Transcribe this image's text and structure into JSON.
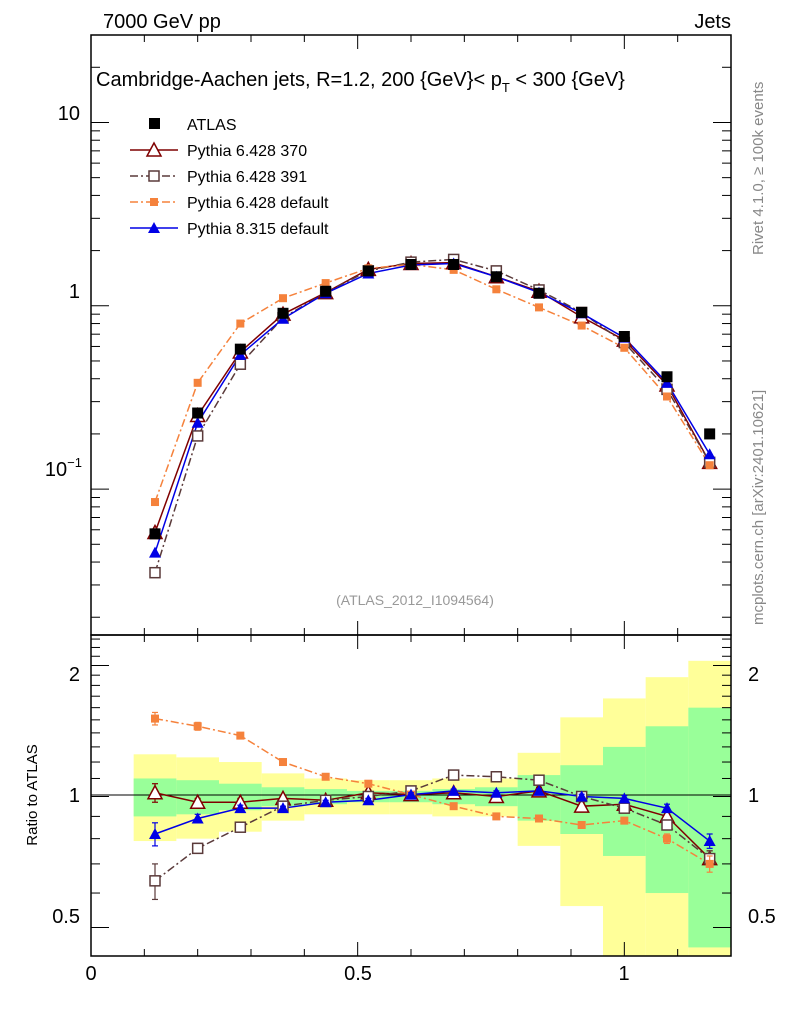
{
  "header": {
    "energy": "7000 GeV pp",
    "process": "Jets"
  },
  "side_labels": {
    "rivet": "Rivet 4.1.0, ≥ 100k events",
    "mcplots": "mcplots.cern.ch [arXiv:2401.10621]"
  },
  "chart_data": {
    "type": "line",
    "title": "Cambridge-Aachen jets, R=1.2,  200 {GeV}< p_T < 300 {GeV}",
    "analysis_id": "(ATLAS_2012_I1094564)",
    "x": [
      0.12,
      0.2,
      0.28,
      0.36,
      0.44,
      0.52,
      0.6,
      0.68,
      0.76,
      0.84,
      0.92,
      1.0,
      1.08,
      1.16
    ],
    "xlim": [
      0,
      1.2
    ],
    "x_ticks": [
      {
        "value": 0,
        "label": "0"
      },
      {
        "value": 0.5,
        "label": "0.5"
      },
      {
        "value": 1,
        "label": "1"
      }
    ],
    "main_panel": {
      "scale": "log",
      "ylim": [
        0.016,
        30
      ],
      "y_ticks": [
        {
          "value": 10,
          "label": "10"
        },
        {
          "value": 1,
          "label": "1"
        },
        {
          "value": 0.1,
          "label": "10^-1"
        }
      ],
      "data": {
        "name": "ATLAS",
        "values": [
          0.057,
          0.26,
          0.58,
          0.91,
          1.2,
          1.55,
          1.68,
          1.68,
          1.44,
          1.17,
          0.92,
          0.68,
          0.41,
          0.2
        ],
        "errors": [
          0.003,
          0.01,
          0.02,
          0.03,
          0.03,
          0.04,
          0.04,
          0.04,
          0.04,
          0.03,
          0.03,
          0.02,
          0.02,
          0.01
        ]
      },
      "series": [
        {
          "name": "Pythia 6.428 370",
          "color": "#7f0000",
          "marker": "open-triangle",
          "dash": "solid",
          "values": [
            0.058,
            0.252,
            0.56,
            0.9,
            1.18,
            1.58,
            1.7,
            1.72,
            1.44,
            1.2,
            0.87,
            0.65,
            0.37,
            0.14
          ],
          "errors": [
            0.003,
            0.005,
            0.008,
            0.01,
            0.01,
            0.012,
            0.012,
            0.012,
            0.012,
            0.01,
            0.01,
            0.008,
            0.006,
            0.004
          ]
        },
        {
          "name": "Pythia 6.428 391",
          "color": "#5a3a3a",
          "marker": "open-square",
          "dash": "dashdot",
          "values": [
            0.035,
            0.195,
            0.48,
            0.86,
            1.18,
            1.55,
            1.73,
            1.79,
            1.55,
            1.22,
            0.92,
            0.63,
            0.35,
            0.14
          ],
          "errors": [
            0.003,
            0.005,
            0.008,
            0.01,
            0.01,
            0.012,
            0.012,
            0.012,
            0.012,
            0.01,
            0.01,
            0.008,
            0.006,
            0.004
          ]
        },
        {
          "name": "Pythia 6.428 default",
          "color": "#f5823c",
          "marker": "filled-square",
          "dash": "dashdot",
          "values": [
            0.085,
            0.38,
            0.8,
            1.1,
            1.33,
            1.6,
            1.68,
            1.57,
            1.23,
            0.98,
            0.78,
            0.59,
            0.32,
            0.135
          ],
          "errors": [
            0.003,
            0.005,
            0.008,
            0.01,
            0.01,
            0.012,
            0.012,
            0.012,
            0.012,
            0.01,
            0.01,
            0.008,
            0.006,
            0.004
          ]
        },
        {
          "name": "Pythia 8.315 default",
          "color": "#0000e6",
          "marker": "filled-triangle",
          "dash": "solid",
          "values": [
            0.045,
            0.23,
            0.54,
            0.85,
            1.17,
            1.5,
            1.67,
            1.7,
            1.44,
            1.18,
            0.91,
            0.67,
            0.38,
            0.155
          ],
          "errors": [
            0.003,
            0.005,
            0.008,
            0.01,
            0.01,
            0.012,
            0.012,
            0.012,
            0.012,
            0.01,
            0.01,
            0.008,
            0.006,
            0.004
          ]
        }
      ]
    },
    "ratio_panel": {
      "ylabel": "Ratio to ATLAS",
      "scale": "log",
      "ylim": [
        0.43,
        2.35
      ],
      "y_ticks": [
        {
          "value": 2,
          "label": "2"
        },
        {
          "value": 1,
          "label": "1"
        },
        {
          "value": 0.5,
          "label": "0.5"
        }
      ],
      "band_edges": [
        0.08,
        0.16,
        0.24,
        0.32,
        0.4,
        0.48,
        0.56,
        0.64,
        0.72,
        0.8,
        0.88,
        0.96,
        1.04,
        1.12,
        1.2
      ],
      "green_band": [
        [
          0.9,
          1.1
        ],
        [
          0.91,
          1.09
        ],
        [
          0.93,
          1.07
        ],
        [
          0.95,
          1.05
        ],
        [
          0.96,
          1.04
        ],
        [
          0.97,
          1.03
        ],
        [
          0.97,
          1.03
        ],
        [
          0.96,
          1.04
        ],
        [
          0.95,
          1.05
        ],
        [
          0.88,
          1.12
        ],
        [
          0.82,
          1.18
        ],
        [
          0.73,
          1.3
        ],
        [
          0.6,
          1.45
        ],
        [
          0.45,
          1.6
        ]
      ],
      "yellow_band": [
        [
          0.79,
          1.25
        ],
        [
          0.8,
          1.23
        ],
        [
          0.83,
          1.2
        ],
        [
          0.88,
          1.13
        ],
        [
          0.91,
          1.1
        ],
        [
          0.91,
          1.09
        ],
        [
          0.91,
          1.09
        ],
        [
          0.9,
          1.1
        ],
        [
          0.9,
          1.1
        ],
        [
          0.77,
          1.26
        ],
        [
          0.56,
          1.52
        ],
        [
          0.4,
          1.68
        ],
        [
          0.34,
          1.88
        ],
        [
          0.32,
          2.05
        ]
      ],
      "series": [
        {
          "name": "Pythia 6.428 370",
          "values": [
            1.02,
            0.97,
            0.97,
            0.99,
            0.98,
            1.02,
            1.01,
            1.02,
            1.0,
            1.03,
            0.95,
            0.96,
            0.9,
            0.72
          ],
          "errors": [
            0.05,
            0.02,
            0.02,
            0.015,
            0.015,
            0.015,
            0.015,
            0.015,
            0.015,
            0.02,
            0.02,
            0.02,
            0.025,
            0.03
          ]
        },
        {
          "name": "Pythia 6.428 391",
          "values": [
            0.64,
            0.76,
            0.85,
            0.95,
            0.98,
            1.0,
            1.03,
            1.12,
            1.11,
            1.09,
            1.0,
            0.94,
            0.86,
            0.72
          ],
          "errors": [
            0.06,
            0.02,
            0.015,
            0.01,
            0.01,
            0.01,
            0.01,
            0.01,
            0.01,
            0.012,
            0.012,
            0.015,
            0.02,
            0.03
          ]
        },
        {
          "name": "Pythia 6.428 default",
          "values": [
            1.51,
            1.45,
            1.38,
            1.2,
            1.11,
            1.07,
            1.01,
            0.95,
            0.9,
            0.89,
            0.86,
            0.88,
            0.8,
            0.7
          ],
          "errors": [
            0.05,
            0.03,
            0.015,
            0.01,
            0.01,
            0.01,
            0.01,
            0.01,
            0.01,
            0.01,
            0.012,
            0.015,
            0.02,
            0.03
          ]
        },
        {
          "name": "Pythia 8.315 default",
          "values": [
            0.82,
            0.89,
            0.94,
            0.94,
            0.97,
            0.98,
            1.01,
            1.03,
            1.02,
            1.03,
            1.0,
            0.99,
            0.94,
            0.79
          ],
          "errors": [
            0.05,
            0.02,
            0.015,
            0.01,
            0.01,
            0.01,
            0.01,
            0.01,
            0.01,
            0.01,
            0.012,
            0.015,
            0.02,
            0.03
          ]
        }
      ]
    }
  }
}
